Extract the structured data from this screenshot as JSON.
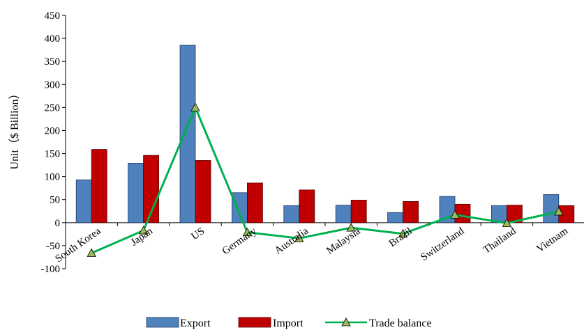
{
  "chart_data": {
    "type": "bar",
    "categories": [
      "South Korea",
      "Japan",
      "US",
      "Germany",
      "Australia",
      "Malaysia",
      "Brazil",
      "Switzerland",
      "Thailand",
      "Vietnam"
    ],
    "series": [
      {
        "name": "Export",
        "kind": "bar",
        "color": "#4F81BD",
        "values": [
          93,
          129,
          385,
          65,
          37,
          38,
          22,
          57,
          37,
          61
        ]
      },
      {
        "name": "Import",
        "kind": "bar",
        "color": "#C00000",
        "values": [
          159,
          146,
          135,
          86,
          71,
          49,
          46,
          40,
          38,
          37
        ]
      },
      {
        "name": "Trade balance",
        "kind": "line",
        "color": "#00B050",
        "marker_color": "#9BBB59",
        "values": [
          -66,
          -17,
          250,
          -21,
          -34,
          -11,
          -24,
          17,
          -1,
          24
        ]
      }
    ],
    "xlabel": "",
    "ylabel": "Unit（$ Billion）",
    "ylim": [
      -100,
      450
    ],
    "yticks": [
      -100,
      -50,
      0,
      50,
      100,
      150,
      200,
      250,
      300,
      350,
      400,
      450
    ],
    "grid": false,
    "legend": "bottom"
  }
}
